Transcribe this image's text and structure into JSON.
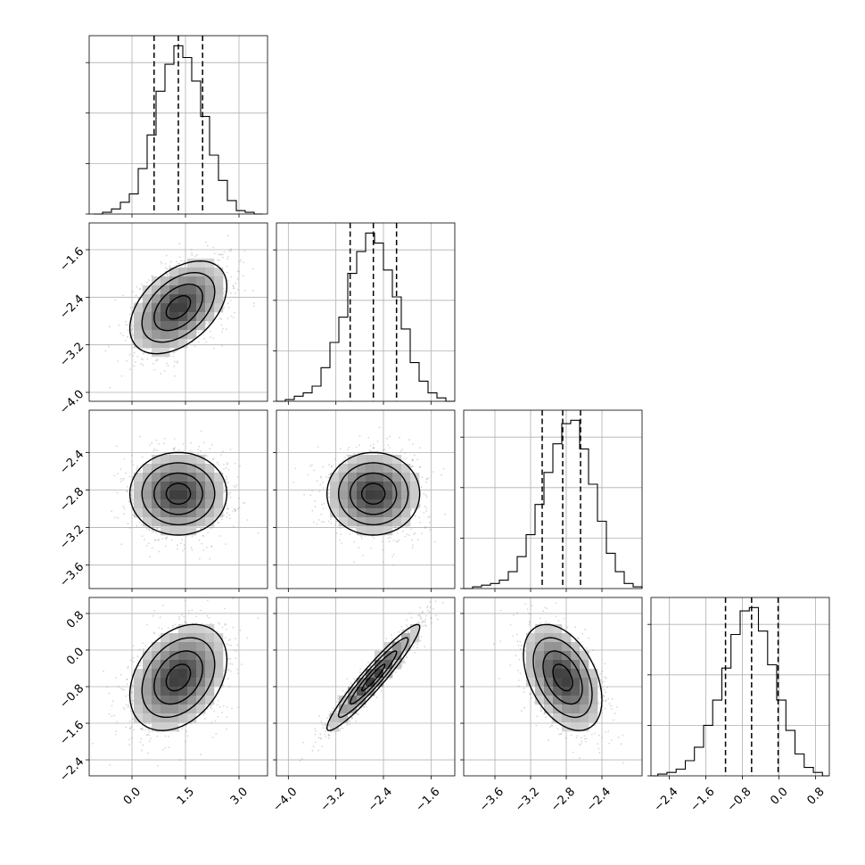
{
  "chart_data": {
    "type": "corner",
    "parameters": [
      {
        "xlim": [
          -1.2,
          3.8
        ],
        "ticks": [
          0.0,
          1.5,
          3.0
        ],
        "tick_labels": [
          "0.0",
          "1.5",
          "3.0"
        ],
        "quantiles": [
          0.62,
          1.3,
          1.98
        ],
        "hist_centers": [
          -0.95,
          -0.7,
          -0.45,
          -0.2,
          0.05,
          0.3,
          0.55,
          0.8,
          1.05,
          1.3,
          1.55,
          1.8,
          2.05,
          2.3,
          2.55,
          2.8,
          3.05,
          3.3,
          3.55
        ],
        "hist_counts": [
          0.0,
          0.01,
          0.03,
          0.07,
          0.12,
          0.27,
          0.47,
          0.73,
          0.89,
          1.0,
          0.93,
          0.79,
          0.58,
          0.35,
          0.2,
          0.08,
          0.02,
          0.01,
          0.0
        ]
      },
      {
        "xlim": [
          -4.2,
          -1.2
        ],
        "ylim": [
          -4.15,
          -1.15
        ],
        "ticks": [
          -4.0,
          -3.2,
          -2.4,
          -1.6
        ],
        "tick_labels": [
          "−4.0",
          "−3.2",
          "−2.4",
          "−1.6"
        ],
        "quantiles": [
          -2.96,
          -2.57,
          -2.18
        ],
        "hist_centers": [
          -4.125,
          -3.975,
          -3.825,
          -3.675,
          -3.525,
          -3.375,
          -3.225,
          -3.075,
          -2.925,
          -2.775,
          -2.625,
          -2.475,
          -2.325,
          -2.175,
          -2.025,
          -1.875,
          -1.725,
          -1.575,
          -1.425,
          -1.275
        ],
        "hist_counts": [
          0.0,
          0.01,
          0.03,
          0.05,
          0.09,
          0.2,
          0.35,
          0.5,
          0.76,
          0.89,
          1.0,
          0.94,
          0.78,
          0.62,
          0.43,
          0.23,
          0.12,
          0.05,
          0.02,
          0.0
        ]
      },
      {
        "xlim": [
          -3.95,
          -1.95
        ],
        "ylim": [
          -3.85,
          -1.95
        ],
        "ticks": [
          -3.6,
          -3.2,
          -2.8,
          -2.4
        ],
        "tick_labels": [
          "−3.6",
          "−3.2",
          "−2.8",
          "−2.4"
        ],
        "quantiles": [
          -3.07,
          -2.84,
          -2.64
        ],
        "hist_centers": [
          -3.9,
          -3.8,
          -3.7,
          -3.6,
          -3.5,
          -3.4,
          -3.3,
          -3.2,
          -3.1,
          -3.0,
          -2.9,
          -2.8,
          -2.7,
          -2.6,
          -2.5,
          -2.4,
          -2.3,
          -2.2,
          -2.1,
          -2.0
        ],
        "hist_counts": [
          0.0,
          0.01,
          0.02,
          0.03,
          0.05,
          0.1,
          0.19,
          0.32,
          0.5,
          0.69,
          0.86,
          0.98,
          1.0,
          0.83,
          0.62,
          0.4,
          0.21,
          0.1,
          0.03,
          0.01
        ]
      },
      {
        "xlim": [
          -2.8,
          1.1
        ],
        "ylim": [
          -2.75,
          1.15
        ],
        "ticks": [
          -2.4,
          -1.6,
          -0.8,
          0.0,
          0.8
        ],
        "tick_labels": [
          "−2.4",
          "−1.6",
          "−0.8",
          "0.0",
          "0.8"
        ],
        "quantiles": [
          -1.17,
          -0.6,
          -0.02
        ],
        "hist_centers": [
          -2.75,
          -2.55,
          -2.35,
          -2.15,
          -1.95,
          -1.75,
          -1.55,
          -1.35,
          -1.15,
          -0.95,
          -0.75,
          -0.55,
          -0.35,
          -0.15,
          0.05,
          0.25,
          0.45,
          0.65,
          0.85,
          1.05
        ],
        "hist_counts": [
          0.0,
          0.01,
          0.02,
          0.04,
          0.09,
          0.17,
          0.3,
          0.45,
          0.64,
          0.84,
          0.98,
          1.0,
          0.86,
          0.66,
          0.45,
          0.27,
          0.13,
          0.05,
          0.02,
          0.0
        ]
      }
    ],
    "pairs": [
      {
        "row": 1,
        "col": 0,
        "mean": [
          1.3,
          -2.57
        ],
        "sd": [
          0.68,
          0.39
        ],
        "rho": 0.45
      },
      {
        "row": 2,
        "col": 0,
        "mean": [
          1.3,
          -2.84
        ],
        "sd": [
          0.68,
          0.22
        ],
        "rho": 0.0
      },
      {
        "row": 2,
        "col": 1,
        "mean": [
          -2.57,
          -2.84
        ],
        "sd": [
          0.39,
          0.22
        ],
        "rho": 0.0
      },
      {
        "row": 3,
        "col": 0,
        "mean": [
          1.3,
          -0.6
        ],
        "sd": [
          0.68,
          0.58
        ],
        "rho": 0.33
      },
      {
        "row": 3,
        "col": 1,
        "mean": [
          -2.57,
          -0.6
        ],
        "sd": [
          0.39,
          0.58
        ],
        "rho": 0.95
      },
      {
        "row": 3,
        "col": 2,
        "mean": [
          -2.84,
          -0.6
        ],
        "sd": [
          0.22,
          0.58
        ],
        "rho": -0.42
      }
    ],
    "contour_sigma_levels": [
      0.5,
      1.0,
      1.5,
      2.0
    ],
    "grid": true
  }
}
